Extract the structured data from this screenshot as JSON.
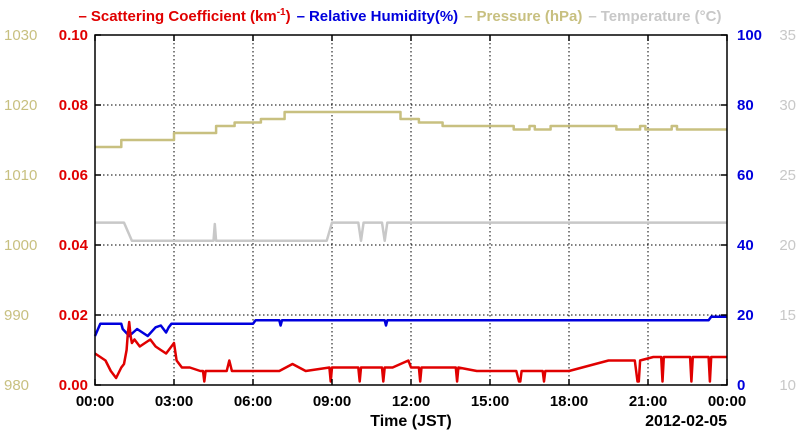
{
  "chart_data": {
    "type": "line",
    "title_parts": [
      {
        "dash": "–",
        "text": "Scattering Coefficient (km",
        "sup": "-1",
        "close": ")",
        "color": "#e00000"
      },
      {
        "dash": "–",
        "text": "Relative Humidity(%)",
        "color": "#0000dd"
      },
      {
        "dash": "–",
        "text": "Pressure (hPa)",
        "color": "#c8c080"
      },
      {
        "dash": "–",
        "text": "Temperature (°C)",
        "color": "#c8c8c8"
      }
    ],
    "xlabel": "Time (JST)",
    "date_label": "2012-02-05",
    "x_ticks": [
      "00:00",
      "03:00",
      "06:00",
      "09:00",
      "12:00",
      "15:00",
      "18:00",
      "21:00",
      "00:00"
    ],
    "x_range_hours": [
      0,
      24
    ],
    "grid": true,
    "axes": {
      "pressure": {
        "ticks": [
          "980",
          "990",
          "1000",
          "1010",
          "1020",
          "1030"
        ],
        "range": [
          980,
          1030
        ],
        "color": "#c8c080"
      },
      "scattering": {
        "ticks": [
          "0.00",
          "0.02",
          "0.04",
          "0.06",
          "0.08",
          "0.10"
        ],
        "range": [
          0,
          0.1
        ],
        "color": "#e00000"
      },
      "humidity": {
        "ticks": [
          "0",
          "20",
          "40",
          "60",
          "80",
          "100"
        ],
        "range": [
          0,
          100
        ],
        "color": "#0000dd"
      },
      "temperature": {
        "ticks": [
          "10",
          "15",
          "20",
          "25",
          "30",
          "35"
        ],
        "range": [
          10,
          35
        ],
        "color": "#c8c8c8"
      }
    },
    "series": [
      {
        "name": "Pressure (hPa)",
        "axis": "pressure",
        "color": "#c8c080",
        "x": [
          0,
          1.0,
          1.0,
          3.0,
          3.0,
          4.6,
          4.6,
          5.3,
          5.3,
          6.3,
          6.3,
          7.2,
          7.2,
          11.6,
          11.6,
          12.3,
          12.3,
          13.2,
          13.2,
          15.9,
          15.9,
          16.5,
          16.5,
          16.7,
          16.7,
          17.3,
          17.3,
          19.8,
          19.8,
          20.7,
          20.7,
          20.9,
          20.9,
          21.9,
          21.9,
          22.1,
          22.1,
          24
        ],
        "y": [
          1014,
          1014,
          1015,
          1015,
          1016,
          1016,
          1017,
          1017,
          1017.5,
          1017.5,
          1018,
          1018,
          1019,
          1019,
          1018,
          1018,
          1017.5,
          1017.5,
          1017,
          1017,
          1016.5,
          1016.5,
          1017,
          1017,
          1016.5,
          1016.5,
          1017,
          1017,
          1016.5,
          1016.5,
          1017,
          1017,
          1016.5,
          1016.5,
          1017,
          1017,
          1016.5,
          1016.5
        ]
      },
      {
        "name": "Temperature (°C)",
        "axis": "temperature",
        "color": "#c8c8c8",
        "x": [
          0,
          1.1,
          1.4,
          4.5,
          4.55,
          4.6,
          8.8,
          9.0,
          10.0,
          10.1,
          10.2,
          10.9,
          11.0,
          11.1,
          24
        ],
        "y": [
          21.6,
          21.6,
          20.3,
          20.3,
          21.5,
          20.3,
          20.3,
          21.6,
          21.6,
          20.3,
          21.6,
          21.6,
          20.3,
          21.6,
          21.6
        ]
      },
      {
        "name": "Relative Humidity(%)",
        "axis": "humidity",
        "color": "#0000dd",
        "x": [
          0,
          0.2,
          1.0,
          1.05,
          1.3,
          1.6,
          2.0,
          2.3,
          2.5,
          2.7,
          2.8,
          2.9,
          3.0,
          4.8,
          5.0,
          5.5,
          6.0,
          6.1,
          7.0,
          7.05,
          7.1,
          11.0,
          11.05,
          11.1,
          14.0,
          20.0,
          22.0,
          23.3,
          23.4,
          24
        ],
        "y": [
          14,
          17.5,
          17.5,
          16,
          14,
          16,
          14,
          16.5,
          17,
          15,
          16.5,
          17.5,
          17.5,
          17.5,
          17.5,
          17.5,
          17.5,
          18.5,
          18.5,
          17,
          18.5,
          18.5,
          17,
          18.5,
          18.5,
          18.5,
          18.5,
          18.5,
          19.5,
          19.5
        ]
      },
      {
        "name": "Scattering Coefficient (km-1)",
        "axis": "scattering",
        "color": "#e00000",
        "x": [
          0,
          0.2,
          0.4,
          0.6,
          0.8,
          1.0,
          1.1,
          1.2,
          1.25,
          1.3,
          1.35,
          1.4,
          1.5,
          1.7,
          1.9,
          2.1,
          2.3,
          2.5,
          2.7,
          2.9,
          3.0,
          3.1,
          3.3,
          3.6,
          4.0,
          4.1,
          4.15,
          4.2,
          4.6,
          5.0,
          5.1,
          5.2,
          5.3,
          6.0,
          7.0,
          7.5,
          8.0,
          8.9,
          8.95,
          9.0,
          10.0,
          10.05,
          10.1,
          10.9,
          10.95,
          11.0,
          11.3,
          11.6,
          11.9,
          12.0,
          12.3,
          12.35,
          12.4,
          13.0,
          13.7,
          13.75,
          13.8,
          14.5,
          15.0,
          16.0,
          16.1,
          16.15,
          16.2,
          17.0,
          17.05,
          17.1,
          18.0,
          18.5,
          19.0,
          19.5,
          20.0,
          20.5,
          20.6,
          20.65,
          20.7,
          21.2,
          21.5,
          21.55,
          21.6,
          22.0,
          22.6,
          22.65,
          22.7,
          23.3,
          23.35,
          23.4,
          24
        ],
        "y": [
          0.009,
          0.008,
          0.007,
          0.004,
          0.002,
          0.005,
          0.006,
          0.01,
          0.015,
          0.018,
          0.014,
          0.012,
          0.013,
          0.011,
          0.012,
          0.013,
          0.011,
          0.01,
          0.009,
          0.011,
          0.012,
          0.007,
          0.005,
          0.005,
          0.004,
          0.004,
          0.001,
          0.004,
          0.004,
          0.004,
          0.007,
          0.004,
          0.004,
          0.004,
          0.004,
          0.006,
          0.004,
          0.005,
          0.001,
          0.005,
          0.005,
          0.001,
          0.005,
          0.005,
          0.001,
          0.005,
          0.005,
          0.006,
          0.007,
          0.005,
          0.005,
          0.001,
          0.005,
          0.005,
          0.005,
          0.001,
          0.005,
          0.004,
          0.004,
          0.004,
          0.001,
          0.001,
          0.004,
          0.004,
          0.001,
          0.004,
          0.004,
          0.005,
          0.006,
          0.007,
          0.007,
          0.007,
          0.001,
          0.001,
          0.007,
          0.008,
          0.008,
          0.001,
          0.008,
          0.008,
          0.008,
          0.001,
          0.008,
          0.008,
          0.001,
          0.008,
          0.008
        ]
      }
    ]
  }
}
